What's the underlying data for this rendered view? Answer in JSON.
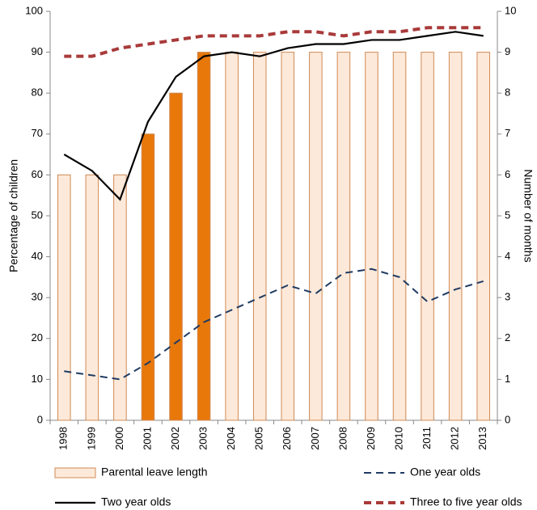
{
  "chart_data": {
    "type": "bar-line",
    "categories": [
      "1998",
      "1999",
      "2000",
      "2001",
      "2002",
      "2003",
      "2004",
      "2005",
      "2006",
      "2007",
      "2008",
      "2009",
      "2010",
      "2011",
      "2012",
      "2013"
    ],
    "y_label": "Percentage of children",
    "y2_label": "Number of months",
    "ylim": [
      0,
      100
    ],
    "yticks": [
      0,
      10,
      20,
      30,
      40,
      50,
      60,
      70,
      80,
      90,
      100
    ],
    "y2lim": [
      0,
      10
    ],
    "y2ticks": [
      0,
      1,
      2,
      3,
      4,
      5,
      6,
      7,
      8,
      9,
      10
    ],
    "grid": false,
    "legend": "bottom",
    "series": [
      {
        "name": "Parental leave length",
        "type": "bar",
        "axis": "y2",
        "color": "#fde9d9",
        "edge_color": "#d08a55",
        "colors": [
          "#fde9d9",
          "#fde9d9",
          "#fde9d9",
          "#e8780a",
          "#e8780a",
          "#e8780a",
          "#fde9d9",
          "#fde9d9",
          "#fde9d9",
          "#fde9d9",
          "#fde9d9",
          "#fde9d9",
          "#fde9d9",
          "#fde9d9",
          "#fde9d9",
          "#fde9d9"
        ],
        "values": [
          6,
          6,
          6,
          7,
          8,
          9,
          9,
          9,
          9,
          9,
          9,
          9,
          9,
          9,
          9,
          9
        ]
      },
      {
        "name": "One year olds",
        "type": "line",
        "color": "#1f3b63",
        "dash": "dashed",
        "width": 2,
        "values": [
          12,
          11,
          10,
          14,
          19,
          24,
          27,
          30,
          33,
          31,
          36,
          37,
          35,
          29,
          32,
          34
        ]
      },
      {
        "name": "Two year olds",
        "type": "line",
        "color": "#000000",
        "dash": "solid",
        "width": 2.2,
        "values": [
          65,
          61,
          54,
          73,
          84,
          89,
          90,
          89,
          91,
          92,
          92,
          93,
          93,
          94,
          95,
          94
        ]
      },
      {
        "name": "Three to five year olds",
        "type": "line",
        "color": "#a93a3a",
        "dash": "dashed",
        "width": 4,
        "values": [
          89,
          89,
          91,
          92,
          93,
          94,
          94,
          94,
          95,
          95,
          94,
          95,
          95,
          96,
          96,
          96
        ]
      }
    ]
  }
}
